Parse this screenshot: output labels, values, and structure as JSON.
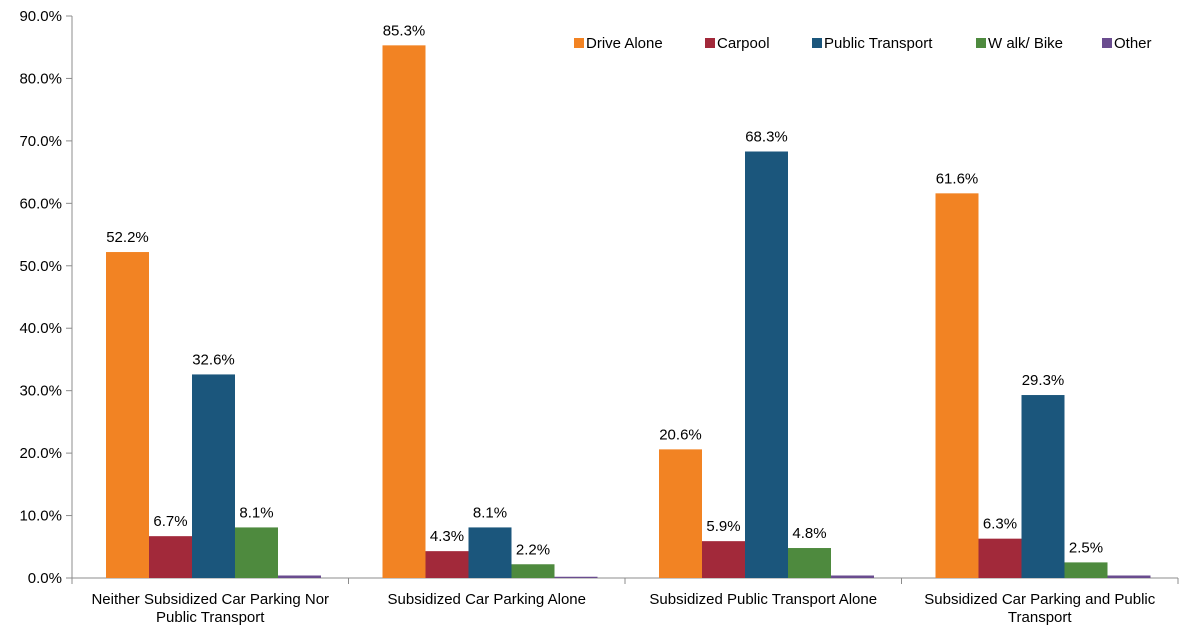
{
  "chart_data": {
    "type": "bar",
    "title": "",
    "xlabel": "",
    "ylabel": "",
    "ylim": [
      0,
      90
    ],
    "ytick_step": 10,
    "ytick_format": "0.0%",
    "categories": [
      [
        "Neither Subsidized Car Parking Nor",
        "Public Transport"
      ],
      [
        "Subsidized Car Parking Alone"
      ],
      [
        "Subsidized Public Transport Alone"
      ],
      [
        "Subsidized Car Parking and Public",
        "Transport"
      ]
    ],
    "series": [
      {
        "name": "Drive Alone",
        "color": "#f28323",
        "values": [
          52.2,
          85.3,
          20.6,
          61.6
        ],
        "labels": [
          "52.2%",
          "85.3%",
          "20.6%",
          "61.6%"
        ]
      },
      {
        "name": "Carpool",
        "color": "#a2293a",
        "values": [
          6.7,
          4.3,
          5.9,
          6.3
        ],
        "labels": [
          "6.7%",
          "4.3%",
          "5.9%",
          "6.3%"
        ]
      },
      {
        "name": "Public Transport",
        "color": "#1b567c",
        "values": [
          32.6,
          8.1,
          68.3,
          29.3
        ],
        "labels": [
          "32.6%",
          "8.1%",
          "68.3%",
          "29.3%"
        ]
      },
      {
        "name": "W alk/ Bike",
        "color": "#4e8a3e",
        "values": [
          8.1,
          2.2,
          4.8,
          2.5
        ],
        "labels": [
          "8.1%",
          "2.2%",
          "4.8%",
          "2.5%"
        ]
      },
      {
        "name": "Other",
        "color": "#6a4c8f",
        "values": [
          0.4,
          0.2,
          0.4,
          0.4
        ],
        "labels": [
          "",
          "",
          "",
          ""
        ]
      }
    ],
    "legend": "top-right",
    "grid": false
  }
}
